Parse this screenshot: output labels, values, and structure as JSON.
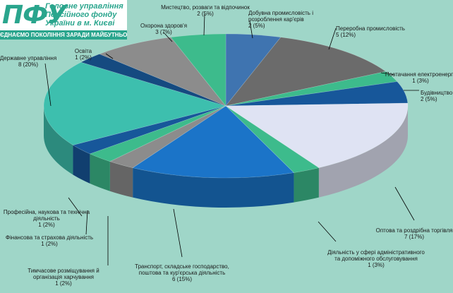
{
  "logo": {
    "mark": "ПФУ",
    "lines": [
      "Головне управління",
      "Пенсійного фонду",
      "України в м. Києві"
    ],
    "slogan": "ЄДНАЄМО ПОКОЛІННЯ ЗАРАДИ МАЙБУТНЬОГО"
  },
  "colors": {
    "background": "#9fd6c8"
  },
  "chart_data": {
    "type": "pie",
    "style": "3d",
    "title": "",
    "unit": "count",
    "slices": [
      {
        "name": "Добувна промисловість і розроблення кар'єрів",
        "value": 2,
        "percent": 5,
        "color": "#3f74b0"
      },
      {
        "name": "Переробна промисловість",
        "value": 5,
        "percent": 12,
        "color": "#6b6b6b"
      },
      {
        "name": "Постачання електроенергії",
        "value": 1,
        "percent": 3,
        "color": "#3dbb8c"
      },
      {
        "name": "Будівництво",
        "value": 2,
        "percent": 5,
        "color": "#17579a"
      },
      {
        "name": "Оптова та роздрібна торгівля",
        "value": 7,
        "percent": 17,
        "color": "#dfe3f3"
      },
      {
        "name": "Діяльність у сфері адміністративного та допоміжного обслуговування",
        "value": 1,
        "percent": 3,
        "color": "#3dbb8c"
      },
      {
        "name": "Транспорт, складське господарство, поштова та кур'єрська діяльність",
        "value": 6,
        "percent": 15,
        "color": "#1b74c8"
      },
      {
        "name": "Тимчасове розміщування й організація харчування",
        "value": 1,
        "percent": 2,
        "color": "#8c8c8c"
      },
      {
        "name": "Фінансова та страхова діяльність",
        "value": 1,
        "percent": 2,
        "color": "#3dbb8c"
      },
      {
        "name": "Професійна, наукова та технічна діяльність",
        "value": 1,
        "percent": 2,
        "color": "#17579a"
      },
      {
        "name": "Державне управління",
        "value": 8,
        "percent": 20,
        "color": "#3dbfae"
      },
      {
        "name": "Освіта",
        "value": 1,
        "percent": 2,
        "color": "#154a80"
      },
      {
        "name": "Охорона здоров'я",
        "value": 3,
        "percent": 7,
        "color": "#8c8c8c"
      },
      {
        "name": "Мистецтво, розваги та відпочинок",
        "value": 2,
        "percent": 5,
        "color": "#3dbb8c"
      }
    ]
  }
}
